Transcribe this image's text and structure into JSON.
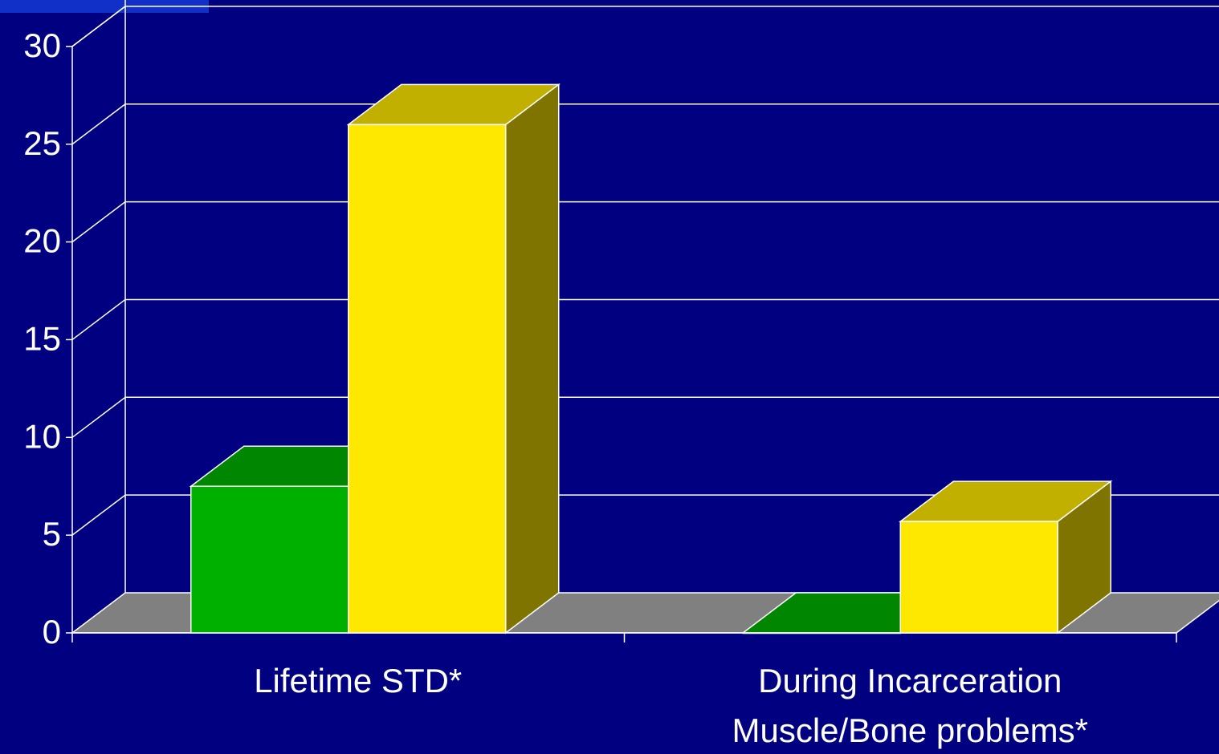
{
  "chart_data": {
    "type": "bar",
    "categories": [
      "Lifetime STD*",
      "During Incarceration\nMuscle/Bone problems*"
    ],
    "series": [
      {
        "values": [
          7.5,
          0
        ],
        "color": "#00B000"
      },
      {
        "values": [
          26,
          5.7
        ],
        "color": "#FFE800"
      }
    ],
    "yticks": [
      "0",
      "5",
      "10",
      "15",
      "20",
      "25",
      "30"
    ],
    "ylim": [
      0,
      30
    ],
    "grid": true,
    "style": "3d",
    "colors": {
      "background": "#000080",
      "floor": "#808080",
      "lines": "#FFFFFF",
      "text": "#FFFFFF"
    }
  }
}
